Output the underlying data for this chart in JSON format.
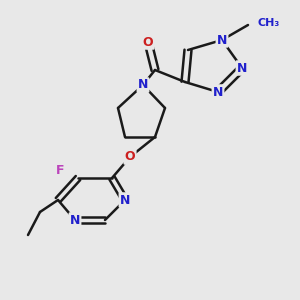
{
  "bg_color": "#e8e8e8",
  "bond_color": "#1a1a1a",
  "N_color": "#2020cc",
  "O_color": "#cc2020",
  "F_color": "#bb44bb",
  "line_width": 1.8,
  "fs": 9.0,
  "xlim": [
    0,
    300
  ],
  "ylim": [
    0,
    300
  ]
}
